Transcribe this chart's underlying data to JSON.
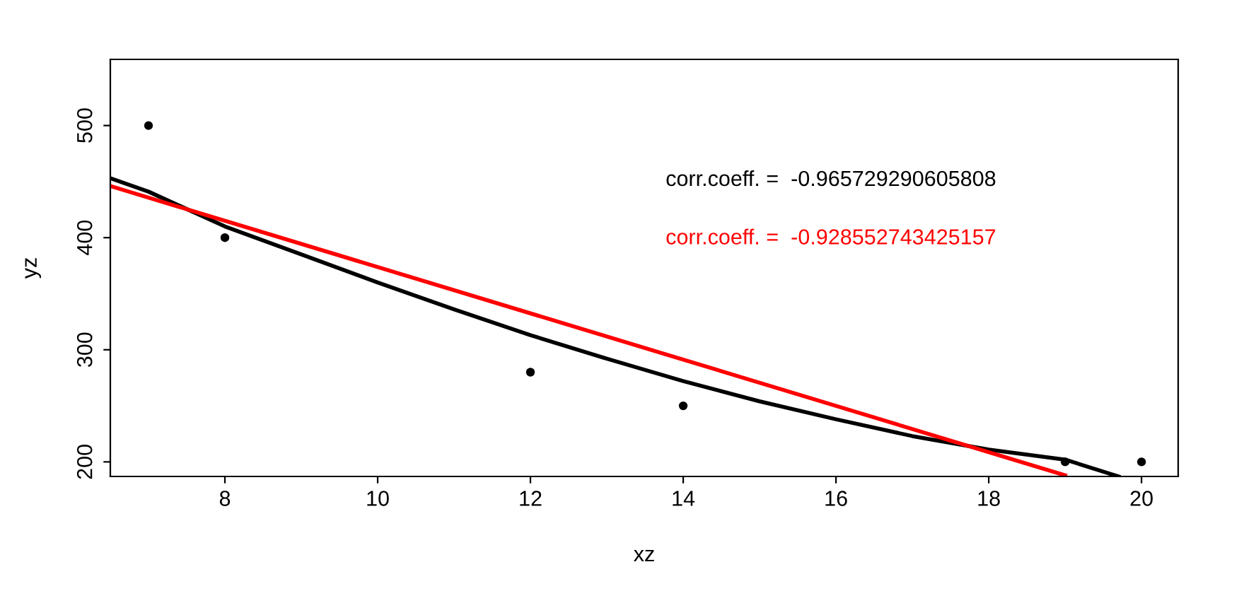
{
  "chart_data": {
    "type": "scatter",
    "xlabel": "xz",
    "ylabel": "yz",
    "series": [
      {
        "color": "#000000",
        "x": [
          7,
          8,
          12,
          14,
          19,
          20
        ],
        "values": [
          500,
          400,
          280,
          250,
          200,
          200
        ],
        "marker": "circle"
      },
      {
        "type": "line",
        "color": "#000000",
        "x": [
          6.5,
          7,
          8,
          9,
          10,
          11,
          12,
          13,
          14,
          15,
          16,
          17,
          18,
          19,
          19.7
        ],
        "values": [
          453,
          441,
          410,
          385,
          360,
          336,
          313,
          292,
          272,
          254,
          238,
          223,
          211,
          202,
          187
        ]
      },
      {
        "type": "line",
        "color": "#ff0000",
        "x": [
          6.5,
          19.0
        ],
        "values": [
          446,
          188
        ]
      }
    ],
    "annotations": [
      "corr.coeff. =  -0.965729290605808",
      "corr.coeff. =  -0.928552743425157"
    ],
    "xlim": [
      6.5,
      20.48
    ],
    "ylim": [
      187,
      559
    ],
    "xticks": [
      8,
      10,
      12,
      14,
      16,
      18,
      20
    ],
    "yticks": [
      200,
      300,
      400,
      500
    ],
    "grid": false,
    "legend": false
  }
}
